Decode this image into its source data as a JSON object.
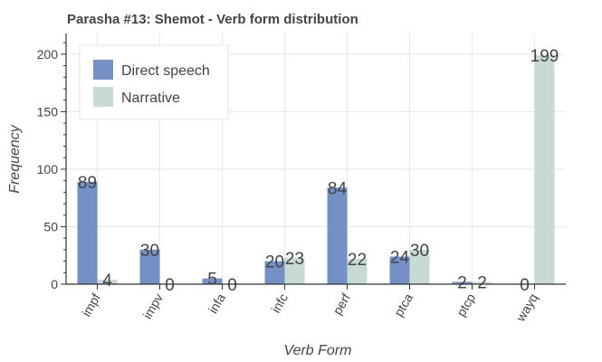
{
  "chart_data": {
    "type": "bar",
    "title": "Parasha #13: Shemot - Verb form distribution",
    "xlabel": "Verb Form",
    "ylabel": "Frequency",
    "categories": [
      "impf",
      "impv",
      "infa",
      "infc",
      "perf",
      "ptca",
      "ptcp",
      "wayq"
    ],
    "series": [
      {
        "name": "Direct speech",
        "color": "#7490c5",
        "values": [
          89,
          30,
          5,
          20,
          84,
          24,
          2,
          0
        ]
      },
      {
        "name": "Narrative",
        "color": "#c9dad4",
        "values": [
          4,
          0,
          0,
          23,
          22,
          30,
          2,
          199
        ]
      }
    ],
    "yticks": [
      0,
      50,
      100,
      150,
      200
    ],
    "ylim": [
      0,
      218
    ],
    "grid": true,
    "legend_position": "top-left"
  }
}
